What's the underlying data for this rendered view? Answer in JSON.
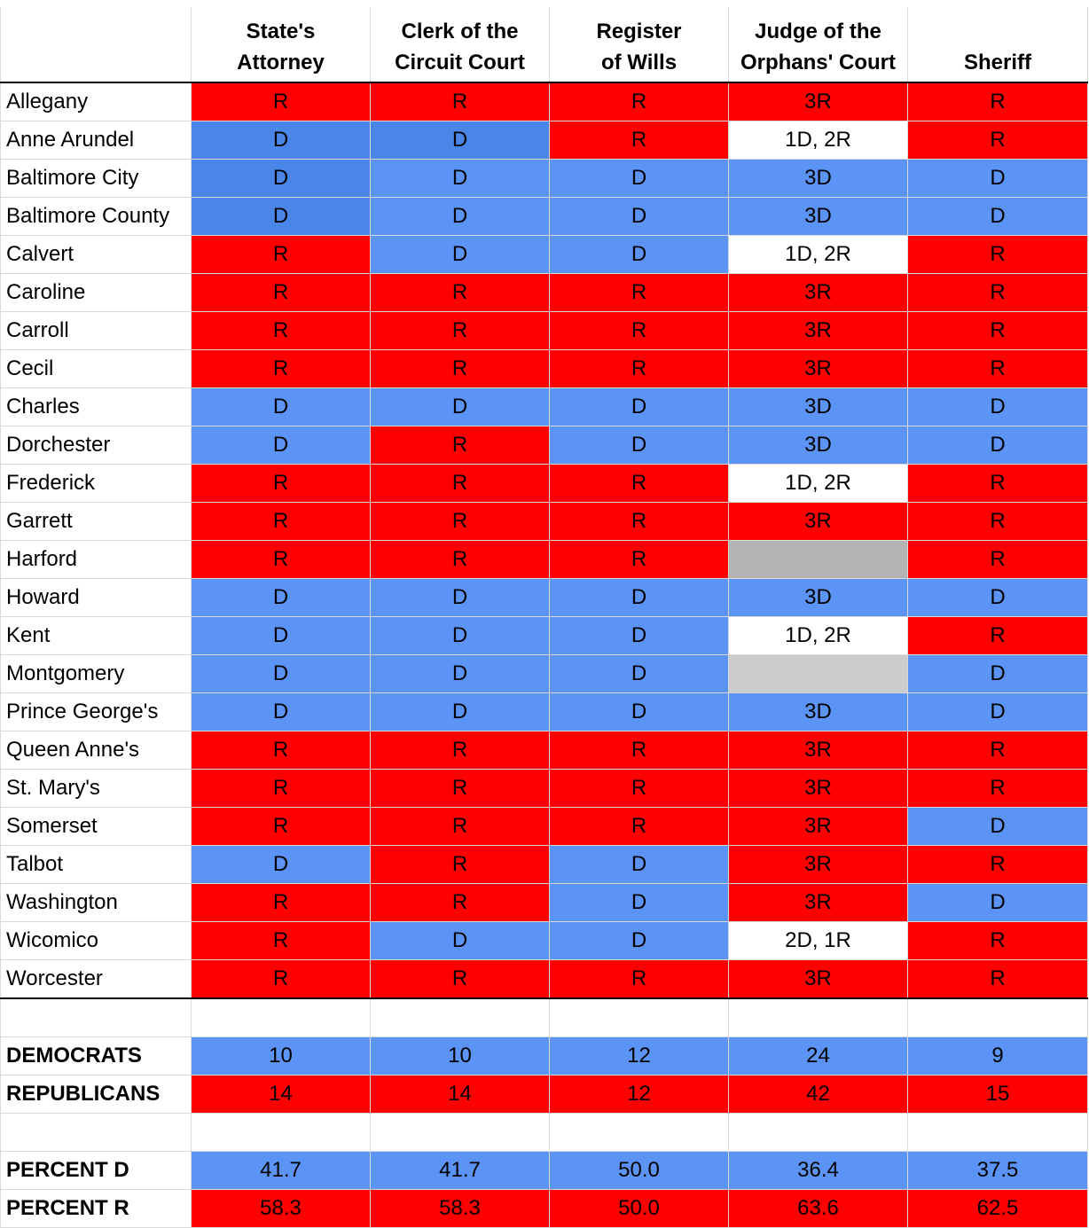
{
  "headers": {
    "line1": [
      "",
      "State's",
      "Clerk of the",
      "Register",
      "Judge of the",
      ""
    ],
    "line2": [
      "",
      "Attorney",
      "Circuit Court",
      "of Wills",
      "Orphans' Court",
      "Sheriff"
    ]
  },
  "counties": [
    {
      "name": "Allegany",
      "cells": [
        "R",
        "R",
        "R",
        "3R",
        "R"
      ],
      "colors": [
        "r",
        "r",
        "r",
        "r",
        "r"
      ]
    },
    {
      "name": "Anne Arundel",
      "cells": [
        "D",
        "D",
        "R",
        "1D, 2R",
        "R"
      ],
      "colors": [
        "dd",
        "dd",
        "r",
        "w",
        "r"
      ]
    },
    {
      "name": "Baltimore City",
      "cells": [
        "D",
        "D",
        "D",
        "3D",
        "D"
      ],
      "colors": [
        "dd",
        "d",
        "d",
        "d",
        "d"
      ]
    },
    {
      "name": "Baltimore County",
      "cells": [
        "D",
        "D",
        "D",
        "3D",
        "D"
      ],
      "colors": [
        "dd",
        "d",
        "d",
        "d",
        "d"
      ]
    },
    {
      "name": "Calvert",
      "cells": [
        "R",
        "D",
        "D",
        "1D, 2R",
        "R"
      ],
      "colors": [
        "r",
        "d",
        "d",
        "w",
        "r"
      ]
    },
    {
      "name": "Caroline",
      "cells": [
        "R",
        "R",
        "R",
        "3R",
        "R"
      ],
      "colors": [
        "r",
        "r",
        "r",
        "r",
        "r"
      ]
    },
    {
      "name": "Carroll",
      "cells": [
        "R",
        "R",
        "R",
        "3R",
        "R"
      ],
      "colors": [
        "r",
        "r",
        "r",
        "r",
        "r"
      ]
    },
    {
      "name": "Cecil",
      "cells": [
        "R",
        "R",
        "R",
        "3R",
        "R"
      ],
      "colors": [
        "r",
        "r",
        "r",
        "r",
        "r"
      ]
    },
    {
      "name": "Charles",
      "cells": [
        "D",
        "D",
        "D",
        "3D",
        "D"
      ],
      "colors": [
        "d",
        "d",
        "d",
        "d",
        "d"
      ]
    },
    {
      "name": "Dorchester",
      "cells": [
        "D",
        "R",
        "D",
        "3D",
        "D"
      ],
      "colors": [
        "d",
        "r",
        "d",
        "d",
        "d"
      ]
    },
    {
      "name": "Frederick",
      "cells": [
        "R",
        "R",
        "R",
        "1D, 2R",
        "R"
      ],
      "colors": [
        "r",
        "r",
        "r",
        "w",
        "r"
      ]
    },
    {
      "name": "Garrett",
      "cells": [
        "R",
        "R",
        "R",
        "3R",
        "R"
      ],
      "colors": [
        "r",
        "r",
        "r",
        "r",
        "r"
      ]
    },
    {
      "name": "Harford",
      "cells": [
        "R",
        "R",
        "R",
        "",
        "R"
      ],
      "colors": [
        "r",
        "r",
        "r",
        "g",
        "r"
      ]
    },
    {
      "name": "Howard",
      "cells": [
        "D",
        "D",
        "D",
        "3D",
        "D"
      ],
      "colors": [
        "d",
        "d",
        "d",
        "d",
        "d"
      ]
    },
    {
      "name": "Kent",
      "cells": [
        "D",
        "D",
        "D",
        "1D, 2R",
        "R"
      ],
      "colors": [
        "d",
        "d",
        "d",
        "w",
        "r"
      ]
    },
    {
      "name": "Montgomery",
      "cells": [
        "D",
        "D",
        "D",
        "",
        "D"
      ],
      "colors": [
        "d",
        "d",
        "d",
        "lg",
        "d"
      ]
    },
    {
      "name": "Prince George's",
      "cells": [
        "D",
        "D",
        "D",
        "3D",
        "D"
      ],
      "colors": [
        "d",
        "d",
        "d",
        "d",
        "d"
      ]
    },
    {
      "name": "Queen Anne's",
      "cells": [
        "R",
        "R",
        "R",
        "3R",
        "R"
      ],
      "colors": [
        "r",
        "r",
        "r",
        "r",
        "r"
      ]
    },
    {
      "name": "St. Mary's",
      "cells": [
        "R",
        "R",
        "R",
        "3R",
        "R"
      ],
      "colors": [
        "r",
        "r",
        "r",
        "r",
        "r"
      ]
    },
    {
      "name": "Somerset",
      "cells": [
        "R",
        "R",
        "R",
        "3R",
        "D"
      ],
      "colors": [
        "r",
        "r",
        "r",
        "r",
        "d"
      ]
    },
    {
      "name": "Talbot",
      "cells": [
        "D",
        "R",
        "D",
        "3R",
        "R"
      ],
      "colors": [
        "d",
        "r",
        "d",
        "r",
        "r"
      ]
    },
    {
      "name": "Washington",
      "cells": [
        "R",
        "R",
        "D",
        "3R",
        "D"
      ],
      "colors": [
        "r",
        "r",
        "d",
        "r",
        "d"
      ]
    },
    {
      "name": "Wicomico",
      "cells": [
        "R",
        "D",
        "D",
        "2D, 1R",
        "R"
      ],
      "colors": [
        "r",
        "d",
        "d",
        "w",
        "r"
      ]
    },
    {
      "name": "Worcester",
      "cells": [
        "R",
        "R",
        "R",
        "3R",
        "R"
      ],
      "colors": [
        "r",
        "r",
        "r",
        "r",
        "r"
      ]
    }
  ],
  "summary": {
    "democrats": {
      "label": "DEMOCRATS",
      "values": [
        "10",
        "10",
        "12",
        "24",
        "9"
      ]
    },
    "republicans": {
      "label": "REPUBLICANS",
      "values": [
        "14",
        "14",
        "12",
        "42",
        "15"
      ]
    },
    "percent_d": {
      "label": "PERCENT D",
      "values": [
        "41.7",
        "41.7",
        "50.0",
        "36.4",
        "37.5"
      ]
    },
    "percent_r": {
      "label": "PERCENT R",
      "values": [
        "58.3",
        "58.3",
        "50.0",
        "63.6",
        "62.5"
      ]
    }
  },
  "colors": {
    "republican": "#ff0000",
    "democrat": "#5b94f4",
    "democrat_dark": "#4a86e8",
    "gray": "#b3b3b3",
    "light_gray": "#cccccc"
  }
}
